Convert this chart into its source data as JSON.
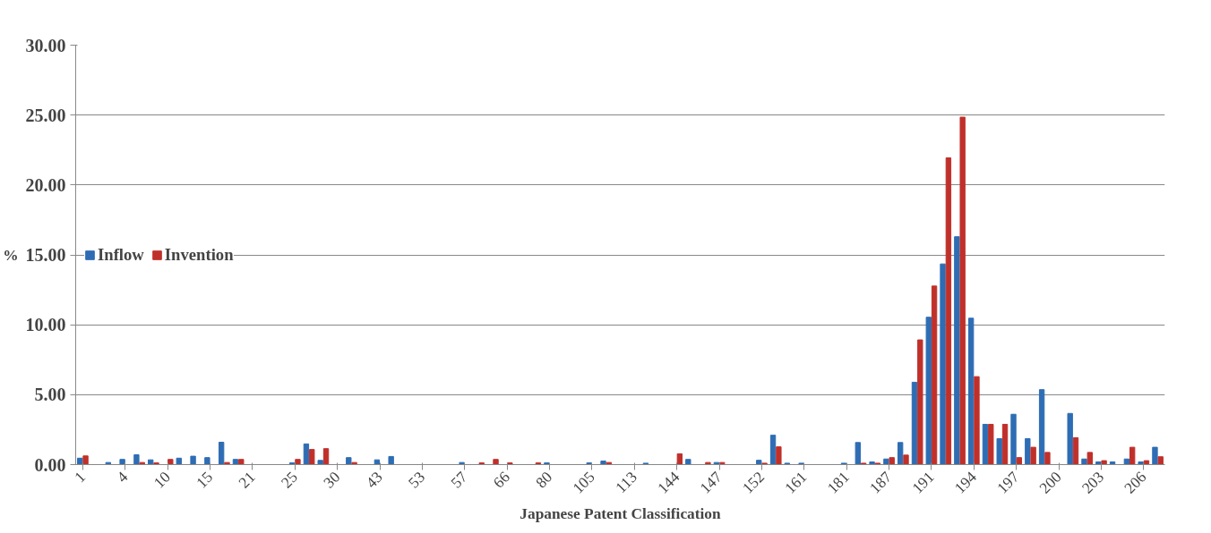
{
  "chart_data": {
    "type": "bar",
    "xlabel": "Japanese Patent Classification",
    "ylabel": "%",
    "categories": [
      "1",
      null,
      null,
      "4",
      null,
      null,
      "10",
      null,
      null,
      "15",
      null,
      null,
      "21",
      null,
      null,
      "25",
      null,
      null,
      "30",
      null,
      null,
      "43",
      null,
      null,
      "53",
      null,
      null,
      "57",
      null,
      null,
      "66",
      null,
      null,
      "80",
      null,
      null,
      "105",
      null,
      null,
      "113",
      null,
      null,
      "144",
      null,
      null,
      "147",
      null,
      null,
      "152",
      null,
      null,
      "161",
      null,
      null,
      "181",
      null,
      null,
      "187",
      null,
      null,
      "191",
      null,
      null,
      "194",
      null,
      null,
      "197",
      null,
      null,
      "200",
      null,
      null,
      "203",
      null,
      null,
      "206",
      null
    ],
    "series": [
      {
        "name": "Inflow",
        "color": "#2e6db4",
        "values": [
          0.46,
          0,
          0.15,
          0.37,
          0.7,
          0.34,
          0,
          0.46,
          0.6,
          0.5,
          1.6,
          0.37,
          0,
          0,
          0,
          0.12,
          1.48,
          0.3,
          0,
          0.5,
          0,
          0.34,
          0.58,
          0,
          0,
          0,
          0,
          0.15,
          0,
          0,
          0,
          0,
          0,
          0.12,
          0,
          0,
          0.12,
          0.25,
          0,
          0,
          0.1,
          0,
          0,
          0.37,
          0,
          0.15,
          0,
          0,
          0.31,
          2.1,
          0.1,
          0.1,
          0,
          0,
          0.1,
          1.58,
          0.19,
          0.4,
          1.58,
          5.89,
          10.54,
          14.35,
          16.3,
          10.47,
          2.88,
          1.86,
          3.6,
          1.86,
          5.36,
          0,
          3.66,
          0.4,
          0.19,
          0.19,
          0.4,
          0.19,
          1.24
        ]
      },
      {
        "name": "Invention",
        "color": "#c0302b",
        "values": [
          0.62,
          0,
          0,
          0,
          0.15,
          0.12,
          0.37,
          0,
          0,
          0,
          0.15,
          0.37,
          0,
          0,
          0,
          0.37,
          1.08,
          1.14,
          0,
          0.15,
          0,
          0,
          0,
          0,
          0,
          0,
          0,
          0,
          0.12,
          0.37,
          0.12,
          0,
          0.12,
          0,
          0,
          0,
          0,
          0.15,
          0,
          0,
          0,
          0,
          0.77,
          0,
          0.15,
          0.15,
          0,
          0,
          0.1,
          1.27,
          0,
          0,
          0,
          0,
          0,
          0.1,
          0.1,
          0.5,
          0.68,
          8.92,
          12.77,
          21.94,
          24.85,
          6.29,
          2.88,
          2.88,
          0.5,
          1.24,
          0.87,
          0,
          1.92,
          0.87,
          0.28,
          0,
          1.24,
          0.28,
          0.56
        ]
      }
    ],
    "ylim": [
      0,
      30
    ],
    "yticks": [
      {
        "value": 0,
        "label": "0.00"
      },
      {
        "value": 5,
        "label": "5.00"
      },
      {
        "value": 10,
        "label": "10.00"
      },
      {
        "value": 15,
        "label": "15.00"
      },
      {
        "value": 20,
        "label": "20.00"
      },
      {
        "value": 25,
        "label": "25.00"
      },
      {
        "value": 30,
        "label": "30.00"
      }
    ],
    "grid": "y",
    "legend": "left"
  }
}
